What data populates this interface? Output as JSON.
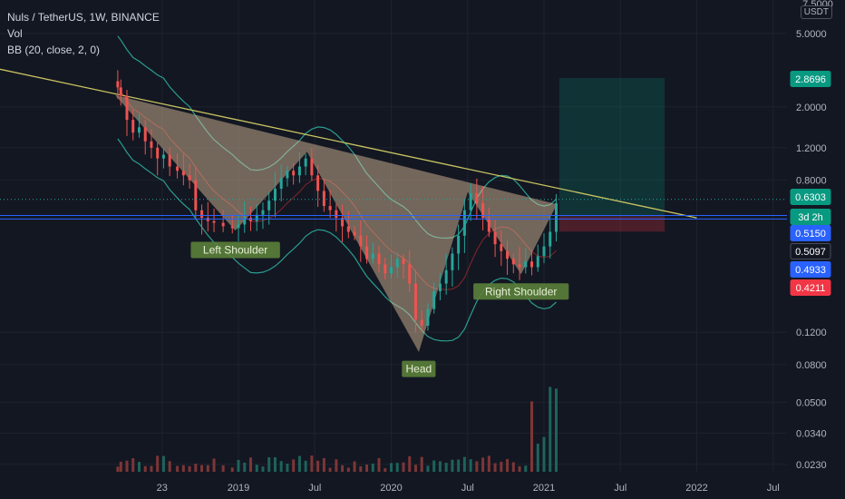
{
  "legend": {
    "symbol_line": "Nuls / TetherUS, 1W, BINANCE",
    "vol_label": "Vol",
    "bb_label": "BB (20, close, 2, 0)"
  },
  "price_axis": {
    "unit": "USDT",
    "top_partial": "7.5000",
    "ticks": [
      "5.0000",
      "2.0000",
      "1.2000",
      "0.8000",
      "0.1200",
      "0.0800",
      "0.0500",
      "0.0340",
      "0.0230"
    ]
  },
  "price_tags": [
    {
      "text": "2.8696",
      "color": "#089981"
    },
    {
      "text": "0.6303",
      "color": "#089981"
    },
    {
      "text": "3d 2h",
      "color": "#089981"
    },
    {
      "text": "0.5150",
      "color": "#2962ff"
    },
    {
      "text": "0.5097",
      "color": "#131722"
    },
    {
      "text": "0.4933",
      "color": "#2962ff"
    },
    {
      "text": "0.4211",
      "color": "#f23645"
    }
  ],
  "time_axis": [
    "23",
    "2019",
    "Jul",
    "2020",
    "Jul",
    "2021",
    "Jul",
    "2022",
    "Jul"
  ],
  "annotations": [
    "Left Shoulder",
    "Head",
    "Right Shoulder"
  ],
  "colors": {
    "background": "#131722",
    "up": "#26a69a",
    "down": "#ef5350",
    "trendline": "#c9c460",
    "pattern_fill": "#e8c7a0",
    "annotation_bg": "#5b7f3a",
    "target_zone": "#089981",
    "stop_zone": "#f23645",
    "bb_band": "#2a9d8f",
    "bb_basis": "#d32f2f",
    "h_line": "#2962ff"
  },
  "chart_data": {
    "type": "candlestick",
    "symbol": "Nuls / TetherUS",
    "interval": "1W",
    "exchange": "BINANCE",
    "y_scale": "log",
    "ylim": [
      0.0205,
      7.6
    ],
    "x_ticks": [
      "23",
      "2019",
      "Jul",
      "2020",
      "Jul",
      "2021",
      "Jul",
      "2022",
      "Jul"
    ],
    "pattern": "inverse head and shoulders",
    "pattern_points": [
      {
        "label": "",
        "time": 2018.2,
        "price": 2.3
      },
      {
        "label": "Left Shoulder",
        "time": 2018.98,
        "price": 0.43
      },
      {
        "label": "",
        "time": 2019.45,
        "price": 1.15
      },
      {
        "label": "Head",
        "time": 2020.18,
        "price": 0.095
      },
      {
        "label": "",
        "time": 2020.5,
        "price": 0.7
      },
      {
        "label": "Right Shoulder",
        "time": 2020.85,
        "price": 0.25
      },
      {
        "label": "",
        "time": 2021.08,
        "price": 0.59
      }
    ],
    "neckline": [
      {
        "time": 2017.15,
        "price": 3.6
      },
      {
        "time": 2022.0,
        "price": 0.5
      }
    ],
    "levels": [
      0.6303,
      0.515,
      0.4933
    ],
    "long_position": {
      "entry": 0.5097,
      "target": 2.8696,
      "stop": 0.4211
    },
    "close_reference": [
      {
        "time": 2018.21,
        "price": 2.55
      },
      {
        "time": 2018.23,
        "price": 2.3
      },
      {
        "time": 2018.27,
        "price": 1.7
      },
      {
        "time": 2018.31,
        "price": 1.45
      },
      {
        "time": 2018.35,
        "price": 1.55
      },
      {
        "time": 2018.39,
        "price": 1.3
      },
      {
        "time": 2018.43,
        "price": 1.2
      },
      {
        "time": 2018.47,
        "price": 1.05
      },
      {
        "time": 2018.51,
        "price": 1.1
      },
      {
        "time": 2018.55,
        "price": 0.95
      },
      {
        "time": 2018.6,
        "price": 0.9
      },
      {
        "time": 2018.64,
        "price": 0.85
      },
      {
        "time": 2018.68,
        "price": 0.8
      },
      {
        "time": 2018.72,
        "price": 0.55
      },
      {
        "time": 2018.76,
        "price": 0.5
      },
      {
        "time": 2018.8,
        "price": 0.48
      },
      {
        "time": 2018.84,
        "price": 0.47
      },
      {
        "time": 2018.9,
        "price": 0.45
      },
      {
        "time": 2018.96,
        "price": 0.44
      },
      {
        "time": 2019.0,
        "price": 0.46
      },
      {
        "time": 2019.04,
        "price": 0.5
      },
      {
        "time": 2019.08,
        "price": 0.48
      },
      {
        "time": 2019.12,
        "price": 0.52
      },
      {
        "time": 2019.16,
        "price": 0.55
      },
      {
        "time": 2019.2,
        "price": 0.62
      },
      {
        "time": 2019.24,
        "price": 0.72
      },
      {
        "time": 2019.28,
        "price": 0.82
      },
      {
        "time": 2019.32,
        "price": 0.9
      },
      {
        "time": 2019.36,
        "price": 0.85
      },
      {
        "time": 2019.4,
        "price": 0.95
      },
      {
        "time": 2019.44,
        "price": 1.05
      },
      {
        "time": 2019.48,
        "price": 0.85
      },
      {
        "time": 2019.52,
        "price": 0.7
      },
      {
        "time": 2019.56,
        "price": 0.58
      },
      {
        "time": 2019.6,
        "price": 0.55
      },
      {
        "time": 2019.64,
        "price": 0.5
      },
      {
        "time": 2019.68,
        "price": 0.45
      },
      {
        "time": 2019.72,
        "price": 0.42
      },
      {
        "time": 2019.76,
        "price": 0.4
      },
      {
        "time": 2019.8,
        "price": 0.35
      },
      {
        "time": 2019.84,
        "price": 0.3
      },
      {
        "time": 2019.88,
        "price": 0.32
      },
      {
        "time": 2019.92,
        "price": 0.28
      },
      {
        "time": 2019.96,
        "price": 0.25
      },
      {
        "time": 2020.0,
        "price": 0.27
      },
      {
        "time": 2020.04,
        "price": 0.3
      },
      {
        "time": 2020.08,
        "price": 0.28
      },
      {
        "time": 2020.12,
        "price": 0.22
      },
      {
        "time": 2020.16,
        "price": 0.14
      },
      {
        "time": 2020.2,
        "price": 0.13
      },
      {
        "time": 2020.24,
        "price": 0.16
      },
      {
        "time": 2020.28,
        "price": 0.2
      },
      {
        "time": 2020.32,
        "price": 0.22
      },
      {
        "time": 2020.36,
        "price": 0.26
      },
      {
        "time": 2020.4,
        "price": 0.32
      },
      {
        "time": 2020.44,
        "price": 0.4
      },
      {
        "time": 2020.48,
        "price": 0.55
      },
      {
        "time": 2020.52,
        "price": 0.68
      },
      {
        "time": 2020.56,
        "price": 0.6
      },
      {
        "time": 2020.6,
        "price": 0.5
      },
      {
        "time": 2020.64,
        "price": 0.42
      },
      {
        "time": 2020.68,
        "price": 0.36
      },
      {
        "time": 2020.72,
        "price": 0.33
      },
      {
        "time": 2020.76,
        "price": 0.3
      },
      {
        "time": 2020.8,
        "price": 0.28
      },
      {
        "time": 2020.84,
        "price": 0.27
      },
      {
        "time": 2020.88,
        "price": 0.29
      },
      {
        "time": 2020.92,
        "price": 0.27
      },
      {
        "time": 2020.96,
        "price": 0.31
      },
      {
        "time": 2021.0,
        "price": 0.35
      },
      {
        "time": 2021.04,
        "price": 0.42
      },
      {
        "time": 2021.08,
        "price": 0.6
      }
    ]
  }
}
